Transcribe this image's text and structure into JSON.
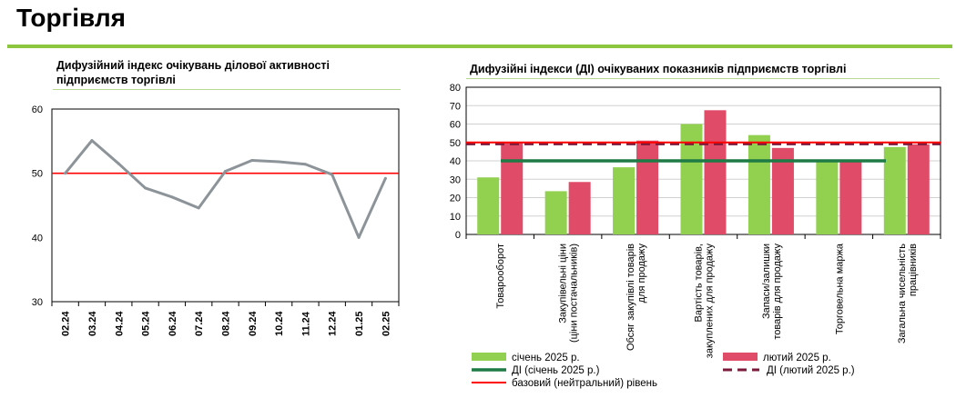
{
  "page": {
    "title": "Торгівля"
  },
  "chart_data": [
    {
      "type": "line",
      "title": "Дифузійний індекс очікувань ділової активності підприємств торгівлі",
      "x": [
        "02.24",
        "03.24",
        "04.24",
        "05.24",
        "06.24",
        "07.24",
        "08.24",
        "09.24",
        "10.24",
        "11.24",
        "12.24",
        "01.25",
        "02.25"
      ],
      "series": [
        {
          "values": [
            50.0,
            55.1,
            51.5,
            47.7,
            46.3,
            44.6,
            50.3,
            52.0,
            51.8,
            51.4,
            49.8,
            40.0,
            49.2
          ]
        }
      ],
      "reference_line": 50,
      "ylim": [
        30,
        60
      ],
      "yticks": [
        30,
        40,
        50,
        60
      ],
      "colors": {
        "line": "#8d9499",
        "reference": "#ff0000"
      },
      "grid": false
    },
    {
      "type": "bar",
      "title": "Дифузійні індекси (ДІ) очікуваних показників підприємств торгівлі",
      "categories": [
        [
          "Товарооборот"
        ],
        [
          "Закупівельні ціни",
          "(ціни постачальників)"
        ],
        [
          "Обсяг закупівлі товарів",
          "для продажу"
        ],
        [
          "Вартість товарів,",
          "закуплених для продажу"
        ],
        [
          "Запаси/залишки",
          "товарів для продажу"
        ],
        [
          "Торговельна маржа"
        ],
        [
          "Загальна чисельність",
          "працівників"
        ]
      ],
      "series": [
        {
          "name": "січень 2025 р.",
          "values": [
            31,
            23.5,
            36.5,
            60,
            54,
            40,
            47.5
          ],
          "color": "#92d050"
        },
        {
          "name": "лютий 2025 р.",
          "values": [
            50,
            28.5,
            51,
            67.5,
            47,
            40,
            49
          ],
          "color": "#e04b68"
        }
      ],
      "lines": [
        {
          "name": "ДІ (січень 2025 р.)",
          "value": 40,
          "color": "#1e7b45",
          "style": "solid"
        },
        {
          "name": "ДІ (лютий 2025 р.)",
          "value": 49.2,
          "color": "#7b1a3b",
          "style": "dashed"
        },
        {
          "name": "базовий (нейтральний) рівень",
          "value": 50,
          "color": "#ff0000",
          "style": "solid"
        }
      ],
      "ylim": [
        0,
        80
      ],
      "yticks": [
        0,
        10,
        20,
        30,
        40,
        50,
        60,
        70,
        80
      ],
      "grid": true,
      "legend_position": "bottom"
    }
  ]
}
